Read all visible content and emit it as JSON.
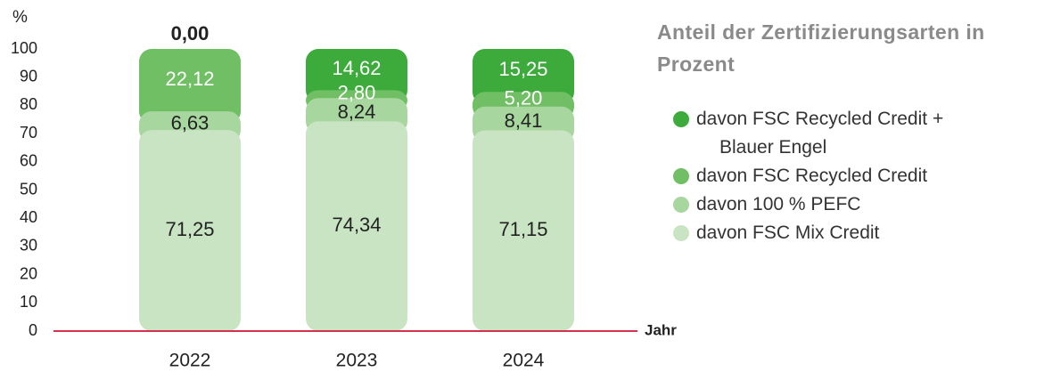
{
  "chart_data": {
    "type": "stacked-bar",
    "title": "Anteil der Zertifizierungsarten in Prozent",
    "y_label": "%",
    "x_label": "Jahr",
    "categories": [
      "2022",
      "2023",
      "2024"
    ],
    "series": [
      {
        "name": "davon FSC Mix Credit",
        "color": "#c9e4c3",
        "values": [
          71.25,
          74.34,
          71.15
        ],
        "value_labels": [
          "71,25",
          "74,34",
          "71,15"
        ]
      },
      {
        "name": "davon 100 % PEFC",
        "color": "#a8d69f",
        "values": [
          6.63,
          8.24,
          8.41
        ],
        "value_labels": [
          "6,63",
          "8,24",
          "8,41"
        ]
      },
      {
        "name": "davon FSC Recycled Credit",
        "color": "#70bf64",
        "values": [
          22.12,
          2.8,
          5.2
        ],
        "value_labels": [
          "22,12",
          "2,80",
          "5,20"
        ]
      },
      {
        "name": "davon FSC Recycled Credit + Blauer Engel",
        "color": "#3dab3b",
        "values": [
          0.0,
          14.62,
          15.25
        ],
        "value_labels": [
          "0,00",
          "14,62",
          "15,25"
        ]
      }
    ],
    "ylim": [
      0,
      100
    ],
    "yticks": [
      0,
      10,
      20,
      30,
      40,
      50,
      60,
      70,
      80,
      90,
      100
    ],
    "axis_color": "#d6304f"
  }
}
